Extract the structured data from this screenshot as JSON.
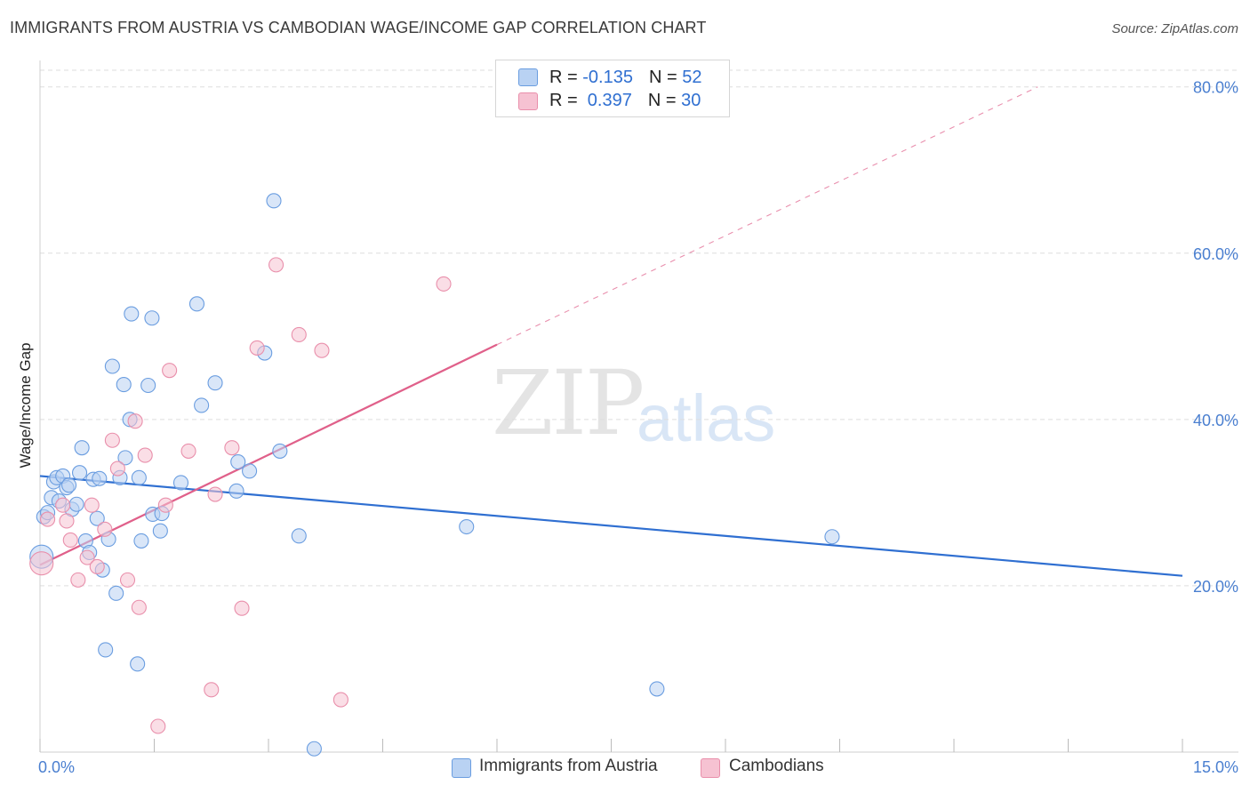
{
  "title": "IMMIGRANTS FROM AUSTRIA VS CAMBODIAN WAGE/INCOME GAP CORRELATION CHART",
  "source": "Source: ZipAtlas.com",
  "watermark": {
    "zip": "ZIP",
    "atlas": "atlas"
  },
  "legend": {
    "austria": {
      "r_label": "R = ",
      "r_value": "-0.135",
      "n_label": "N = ",
      "n_value": "52"
    },
    "cambodian": {
      "r_label": "R = ",
      "r_value": " 0.397",
      "n_label": "N = ",
      "n_value": "30"
    }
  },
  "bottom_legend": {
    "austria": "Immigrants from Austria",
    "cambodian": "Cambodians"
  },
  "colors": {
    "austria_fill": "#b9d2f3",
    "austria_stroke": "#6a9de0",
    "austria_line": "#2f6fd1",
    "cambodian_fill": "#f6c2d2",
    "cambodian_stroke": "#e98fab",
    "cambodian_line": "#e0608a",
    "grid": "#dedede",
    "tick_text": "#4a7fd0"
  },
  "chart_data": {
    "type": "scatter",
    "title": "IMMIGRANTS FROM AUSTRIA VS CAMBODIAN WAGE/INCOME GAP CORRELATION CHART",
    "xlabel": "",
    "ylabel": "Wage/Income Gap",
    "xlim": [
      0,
      15
    ],
    "ylim": [
      0,
      82
    ],
    "x_tick_labels": [
      "0.0%",
      "15.0%"
    ],
    "y_ticks": [
      20,
      40,
      60,
      80
    ],
    "y_tick_labels": [
      "20.0%",
      "40.0%",
      "60.0%",
      "80.0%"
    ],
    "series": [
      {
        "name": "Immigrants from Austria",
        "R": -0.135,
        "N": 52,
        "trend": {
          "x0": 0,
          "y0": 33.2,
          "x1": 15,
          "y1": 21.2,
          "dashed_from_x": null
        },
        "points": [
          [
            0.02,
            23.5
          ],
          [
            0.05,
            28.3
          ],
          [
            0.1,
            28.8
          ],
          [
            0.15,
            30.6
          ],
          [
            0.18,
            32.5
          ],
          [
            0.22,
            33.0
          ],
          [
            0.25,
            30.2
          ],
          [
            0.3,
            33.2
          ],
          [
            0.35,
            31.8
          ],
          [
            0.38,
            32.1
          ],
          [
            0.42,
            29.2
          ],
          [
            0.48,
            29.8
          ],
          [
            0.52,
            33.6
          ],
          [
            0.55,
            36.6
          ],
          [
            0.6,
            25.4
          ],
          [
            0.65,
            24.0
          ],
          [
            0.7,
            32.8
          ],
          [
            0.75,
            28.1
          ],
          [
            0.78,
            32.9
          ],
          [
            0.82,
            21.9
          ],
          [
            0.86,
            12.3
          ],
          [
            0.9,
            25.6
          ],
          [
            0.95,
            46.4
          ],
          [
            1.0,
            19.1
          ],
          [
            1.05,
            33.0
          ],
          [
            1.1,
            44.2
          ],
          [
            1.12,
            35.4
          ],
          [
            1.18,
            40.0
          ],
          [
            1.2,
            52.7
          ],
          [
            1.28,
            10.6
          ],
          [
            1.3,
            33.0
          ],
          [
            1.33,
            25.4
          ],
          [
            1.42,
            44.1
          ],
          [
            1.47,
            52.2
          ],
          [
            1.48,
            28.6
          ],
          [
            1.58,
            26.6
          ],
          [
            1.6,
            28.7
          ],
          [
            1.85,
            32.4
          ],
          [
            2.06,
            53.9
          ],
          [
            2.12,
            41.7
          ],
          [
            2.3,
            44.4
          ],
          [
            2.58,
            31.4
          ],
          [
            2.6,
            34.9
          ],
          [
            2.75,
            33.8
          ],
          [
            2.95,
            48.0
          ],
          [
            3.07,
            66.3
          ],
          [
            3.15,
            36.2
          ],
          [
            3.4,
            26.0
          ],
          [
            3.6,
            0.4
          ],
          [
            5.6,
            27.1
          ],
          [
            8.1,
            7.6
          ],
          [
            10.4,
            25.9
          ]
        ]
      },
      {
        "name": "Cambodians",
        "R": 0.397,
        "N": 30,
        "trend": {
          "x0": 0,
          "y0": 22.5,
          "x1": 6.0,
          "y1": 49.0,
          "dashed_to": [
            13.1,
            80.0
          ]
        },
        "points": [
          [
            0.02,
            22.7
          ],
          [
            0.1,
            28.0
          ],
          [
            0.3,
            29.7
          ],
          [
            0.35,
            27.8
          ],
          [
            0.4,
            25.5
          ],
          [
            0.5,
            20.7
          ],
          [
            0.62,
            23.4
          ],
          [
            0.68,
            29.7
          ],
          [
            0.75,
            22.3
          ],
          [
            0.85,
            26.8
          ],
          [
            0.95,
            37.5
          ],
          [
            1.02,
            34.1
          ],
          [
            1.15,
            20.7
          ],
          [
            1.25,
            39.8
          ],
          [
            1.3,
            17.4
          ],
          [
            1.38,
            35.7
          ],
          [
            1.65,
            29.7
          ],
          [
            1.7,
            45.9
          ],
          [
            1.95,
            36.2
          ],
          [
            2.25,
            7.5
          ],
          [
            2.3,
            31.0
          ],
          [
            2.52,
            36.6
          ],
          [
            2.65,
            17.3
          ],
          [
            2.85,
            48.6
          ],
          [
            3.1,
            58.6
          ],
          [
            3.4,
            50.2
          ],
          [
            3.7,
            48.3
          ],
          [
            3.95,
            6.3
          ],
          [
            5.3,
            56.3
          ],
          [
            1.55,
            3.1
          ]
        ]
      }
    ]
  }
}
